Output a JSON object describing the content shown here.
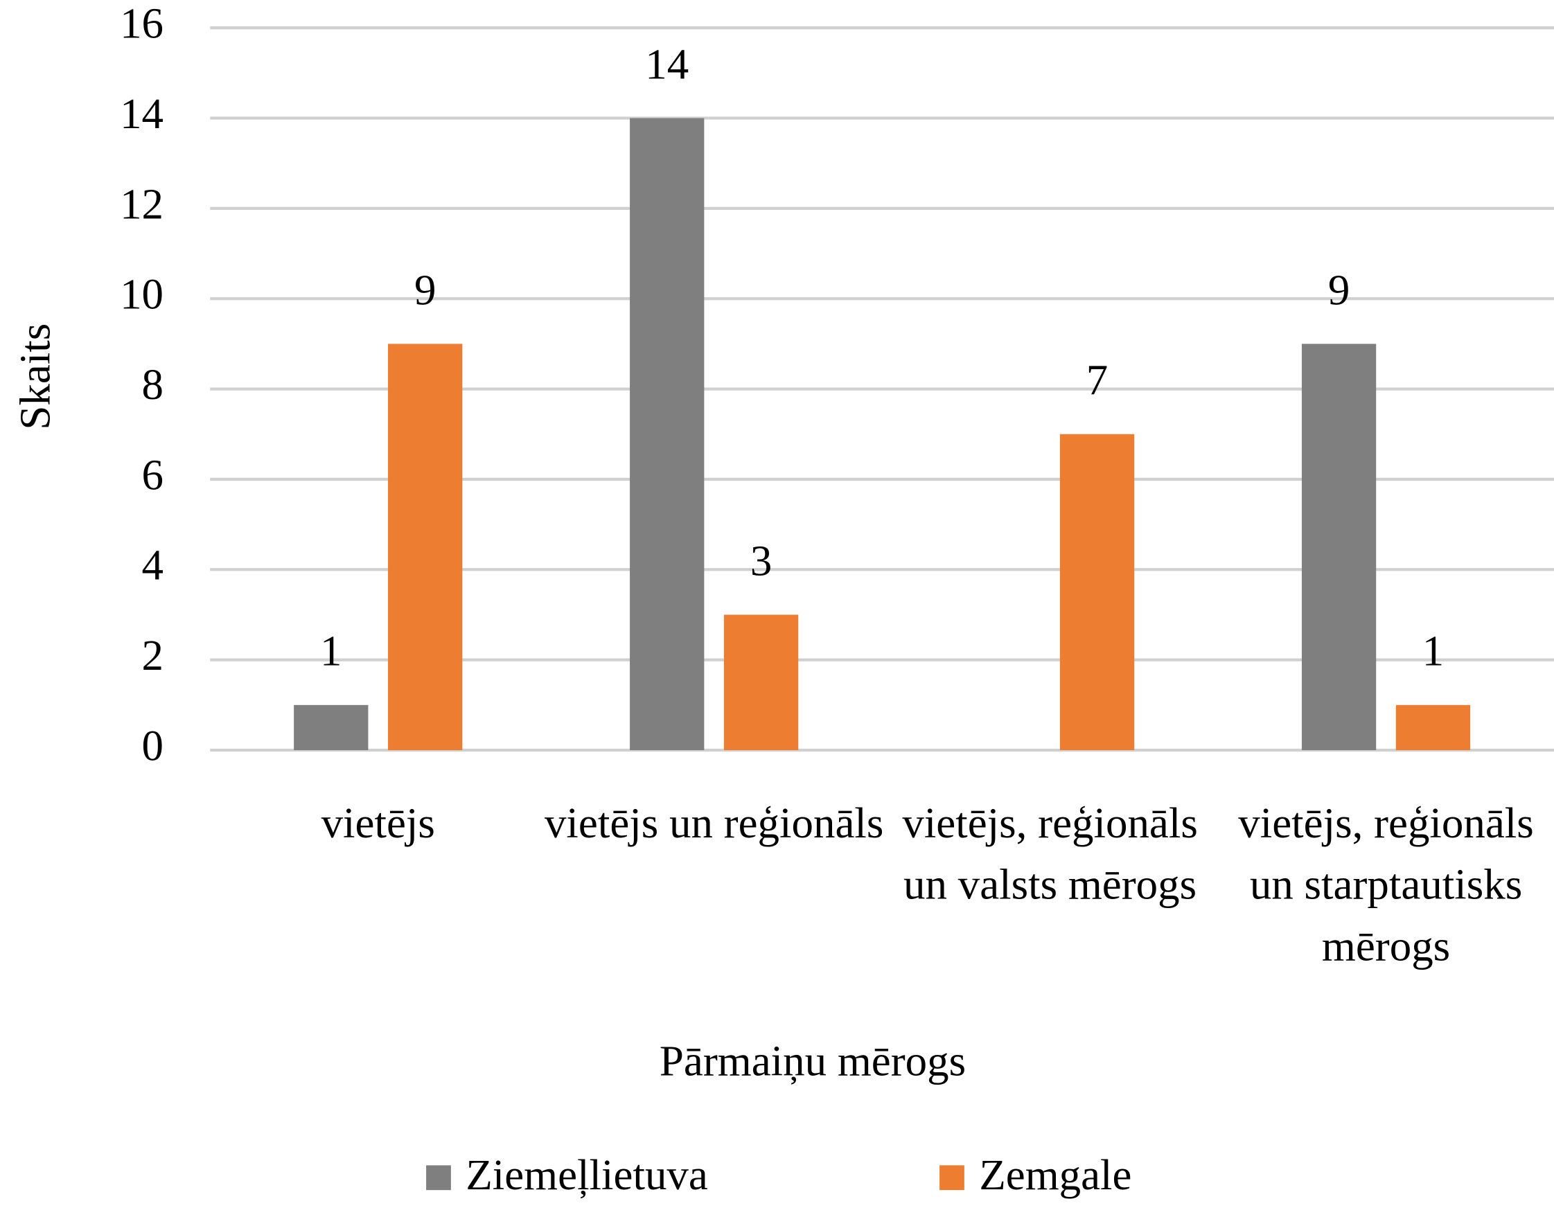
{
  "chart_data": {
    "type": "bar",
    "categories": [
      "vietējs",
      "vietējs un reģionāls",
      "vietējs, reģionāls un valsts mērogs",
      "vietējs, reģionāls un starptautisks mērogs"
    ],
    "series": [
      {
        "name": "Ziemeļlietuva",
        "color": "#7f7f7f",
        "values": [
          1,
          14,
          null,
          9
        ]
      },
      {
        "name": "Zemgale",
        "color": "#ed7d31",
        "values": [
          9,
          3,
          7,
          1
        ]
      }
    ],
    "ylabel": "Skaits",
    "xlabel": "Pārmaiņu mērogs",
    "ylim": [
      0,
      16
    ],
    "yticks": [
      0,
      2,
      4,
      6,
      8,
      10,
      12,
      14,
      16
    ],
    "grid": true,
    "legend": "bottom"
  }
}
